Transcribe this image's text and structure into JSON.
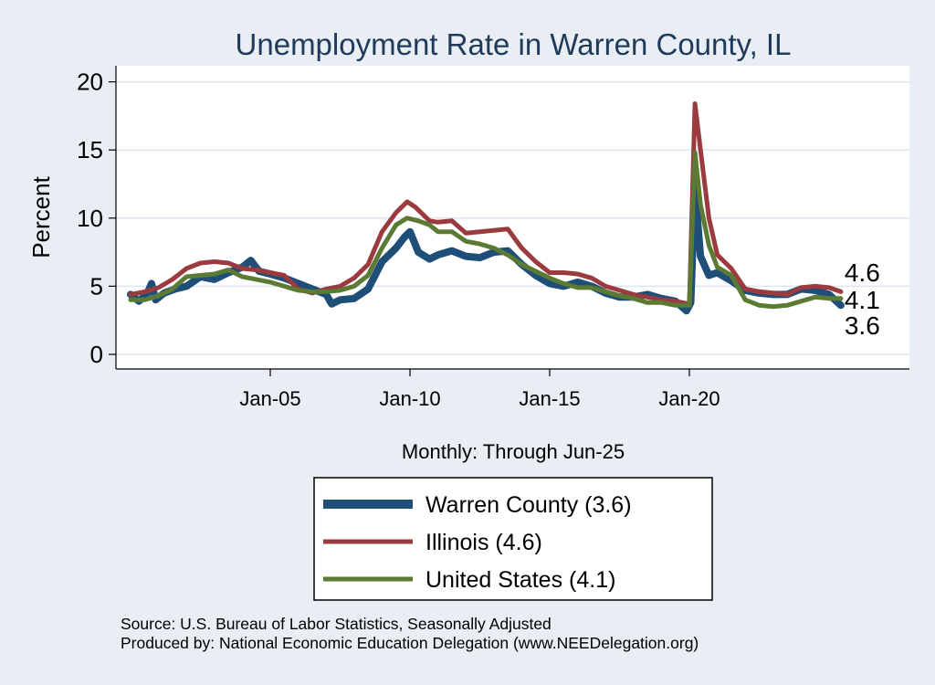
{
  "chart_data": {
    "type": "line",
    "title": "Unemployment Rate in Warren  County, IL",
    "ylabel": "Percent",
    "xlabel": "Monthly: Through Jun-25",
    "ylim": [
      0,
      21
    ],
    "yticks": [
      0,
      5,
      10,
      15,
      20
    ],
    "xticks": [
      {
        "label": "Jan-05",
        "value": 2005.0
      },
      {
        "label": "Jan-10",
        "value": 2010.0
      },
      {
        "label": "Jan-15",
        "value": 2015.0
      },
      {
        "label": "Jan-20",
        "value": 2020.0
      }
    ],
    "xlim": [
      2000.0,
      2026.5
    ],
    "grid": true,
    "legend_position": "bottom",
    "colors": {
      "background": "#e8eef4",
      "plot_background": "#ffffff",
      "grid": "#dde6ee"
    },
    "series": [
      {
        "name": "Warren  County (3.6)",
        "color": "#1f4e79",
        "end_label": "3.6",
        "points": [
          [
            2000.0,
            4.4
          ],
          [
            2000.3,
            3.9
          ],
          [
            2000.6,
            4.5
          ],
          [
            2000.75,
            5.2
          ],
          [
            2000.9,
            4.0
          ],
          [
            2001.2,
            4.5
          ],
          [
            2001.6,
            4.8
          ],
          [
            2002.0,
            5.0
          ],
          [
            2002.5,
            5.7
          ],
          [
            2003.0,
            5.5
          ],
          [
            2003.5,
            6.0
          ],
          [
            2004.0,
            6.4
          ],
          [
            2004.3,
            6.9
          ],
          [
            2004.6,
            6.1
          ],
          [
            2005.0,
            5.9
          ],
          [
            2005.5,
            5.6
          ],
          [
            2006.0,
            5.2
          ],
          [
            2006.5,
            4.8
          ],
          [
            2007.0,
            4.4
          ],
          [
            2007.2,
            3.7
          ],
          [
            2007.5,
            4.0
          ],
          [
            2008.0,
            4.1
          ],
          [
            2008.5,
            4.8
          ],
          [
            2009.0,
            6.8
          ],
          [
            2009.5,
            7.8
          ],
          [
            2009.8,
            8.6
          ],
          [
            2010.0,
            9.0
          ],
          [
            2010.3,
            7.5
          ],
          [
            2010.7,
            7.0
          ],
          [
            2011.0,
            7.3
          ],
          [
            2011.5,
            7.6
          ],
          [
            2012.0,
            7.2
          ],
          [
            2012.5,
            7.1
          ],
          [
            2013.0,
            7.5
          ],
          [
            2013.5,
            7.6
          ],
          [
            2014.0,
            6.6
          ],
          [
            2014.5,
            5.8
          ],
          [
            2015.0,
            5.2
          ],
          [
            2015.5,
            5.0
          ],
          [
            2016.0,
            5.3
          ],
          [
            2016.5,
            5.0
          ],
          [
            2017.0,
            4.5
          ],
          [
            2017.5,
            4.2
          ],
          [
            2018.0,
            4.2
          ],
          [
            2018.5,
            4.4
          ],
          [
            2019.0,
            4.1
          ],
          [
            2019.5,
            3.9
          ],
          [
            2019.9,
            3.2
          ],
          [
            2020.05,
            3.8
          ],
          [
            2020.2,
            12.2
          ],
          [
            2020.4,
            7.2
          ],
          [
            2020.7,
            5.8
          ],
          [
            2021.0,
            6.0
          ],
          [
            2021.5,
            5.4
          ],
          [
            2022.0,
            4.7
          ],
          [
            2022.5,
            4.5
          ],
          [
            2023.0,
            4.4
          ],
          [
            2023.5,
            4.4
          ],
          [
            2024.0,
            4.8
          ],
          [
            2024.5,
            4.7
          ],
          [
            2025.0,
            4.4
          ],
          [
            2025.42,
            3.6
          ]
        ]
      },
      {
        "name": "Illinois (4.6)",
        "color": "#9b3a3f",
        "end_label": "4.6",
        "points": [
          [
            2000.0,
            4.4
          ],
          [
            2000.5,
            4.6
          ],
          [
            2001.0,
            4.9
          ],
          [
            2001.5,
            5.5
          ],
          [
            2002.0,
            6.3
          ],
          [
            2002.5,
            6.7
          ],
          [
            2003.0,
            6.8
          ],
          [
            2003.5,
            6.7
          ],
          [
            2004.0,
            6.3
          ],
          [
            2004.5,
            6.2
          ],
          [
            2005.0,
            6.0
          ],
          [
            2005.5,
            5.8
          ],
          [
            2006.0,
            4.8
          ],
          [
            2006.5,
            4.5
          ],
          [
            2007.0,
            4.8
          ],
          [
            2007.5,
            5.0
          ],
          [
            2008.0,
            5.6
          ],
          [
            2008.5,
            6.6
          ],
          [
            2009.0,
            9.0
          ],
          [
            2009.5,
            10.4
          ],
          [
            2009.9,
            11.2
          ],
          [
            2010.2,
            10.8
          ],
          [
            2010.7,
            9.8
          ],
          [
            2011.0,
            9.7
          ],
          [
            2011.5,
            9.8
          ],
          [
            2012.0,
            8.9
          ],
          [
            2012.5,
            9.0
          ],
          [
            2013.0,
            9.1
          ],
          [
            2013.5,
            9.2
          ],
          [
            2014.0,
            7.8
          ],
          [
            2014.5,
            6.8
          ],
          [
            2015.0,
            6.0
          ],
          [
            2015.5,
            6.0
          ],
          [
            2016.0,
            5.9
          ],
          [
            2016.5,
            5.6
          ],
          [
            2017.0,
            5.0
          ],
          [
            2017.5,
            4.7
          ],
          [
            2018.0,
            4.4
          ],
          [
            2018.5,
            4.2
          ],
          [
            2019.0,
            4.0
          ],
          [
            2019.5,
            3.9
          ],
          [
            2020.0,
            3.7
          ],
          [
            2020.2,
            18.4
          ],
          [
            2020.4,
            15.0
          ],
          [
            2020.7,
            10.0
          ],
          [
            2021.0,
            7.3
          ],
          [
            2021.5,
            6.3
          ],
          [
            2022.0,
            4.8
          ],
          [
            2022.5,
            4.6
          ],
          [
            2023.0,
            4.5
          ],
          [
            2023.5,
            4.4
          ],
          [
            2024.0,
            4.9
          ],
          [
            2024.5,
            5.0
          ],
          [
            2025.0,
            4.9
          ],
          [
            2025.42,
            4.6
          ]
        ]
      },
      {
        "name": "United States (4.1)",
        "color": "#5b7a34",
        "end_label": "4.1",
        "points": [
          [
            2000.0,
            4.0
          ],
          [
            2000.5,
            4.0
          ],
          [
            2001.0,
            4.3
          ],
          [
            2001.5,
            4.8
          ],
          [
            2002.0,
            5.7
          ],
          [
            2002.5,
            5.8
          ],
          [
            2003.0,
            5.9
          ],
          [
            2003.5,
            6.2
          ],
          [
            2004.0,
            5.7
          ],
          [
            2004.5,
            5.5
          ],
          [
            2005.0,
            5.3
          ],
          [
            2005.5,
            5.0
          ],
          [
            2006.0,
            4.7
          ],
          [
            2006.5,
            4.6
          ],
          [
            2007.0,
            4.6
          ],
          [
            2007.5,
            4.7
          ],
          [
            2008.0,
            5.0
          ],
          [
            2008.5,
            5.8
          ],
          [
            2009.0,
            7.8
          ],
          [
            2009.5,
            9.5
          ],
          [
            2009.9,
            10.0
          ],
          [
            2010.3,
            9.8
          ],
          [
            2010.7,
            9.5
          ],
          [
            2011.0,
            9.0
          ],
          [
            2011.5,
            9.0
          ],
          [
            2012.0,
            8.3
          ],
          [
            2012.5,
            8.1
          ],
          [
            2013.0,
            7.8
          ],
          [
            2013.5,
            7.3
          ],
          [
            2014.0,
            6.6
          ],
          [
            2014.5,
            6.1
          ],
          [
            2015.0,
            5.6
          ],
          [
            2015.5,
            5.2
          ],
          [
            2016.0,
            4.9
          ],
          [
            2016.5,
            4.9
          ],
          [
            2017.0,
            4.6
          ],
          [
            2017.5,
            4.3
          ],
          [
            2018.0,
            4.1
          ],
          [
            2018.5,
            3.8
          ],
          [
            2019.0,
            3.8
          ],
          [
            2019.5,
            3.6
          ],
          [
            2020.0,
            3.6
          ],
          [
            2020.2,
            14.8
          ],
          [
            2020.4,
            11.0
          ],
          [
            2020.7,
            8.0
          ],
          [
            2021.0,
            6.4
          ],
          [
            2021.5,
            5.8
          ],
          [
            2022.0,
            4.0
          ],
          [
            2022.5,
            3.6
          ],
          [
            2023.0,
            3.5
          ],
          [
            2023.5,
            3.6
          ],
          [
            2024.0,
            3.9
          ],
          [
            2024.5,
            4.2
          ],
          [
            2025.0,
            4.1
          ],
          [
            2025.42,
            4.1
          ]
        ]
      }
    ]
  },
  "source_line1": "Source: U.S. Bureau of Labor Statistics, Seasonally Adjusted",
  "source_line2": "Produced by: National Economic Education Delegation (www.NEEDelegation.org)"
}
